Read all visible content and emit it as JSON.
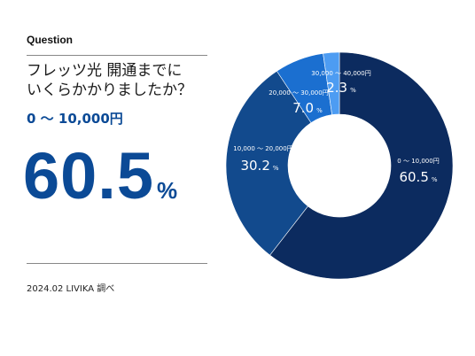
{
  "header": {
    "label": "Question"
  },
  "question": {
    "line1": "フレッツ光 開通までに",
    "line2": "いくらかかりましたか？"
  },
  "highlight": {
    "range": "0 ～ 10,000円",
    "value": "60.5",
    "unit": "%"
  },
  "source": "2024.02 LIVIKA 調べ",
  "colors": {
    "accent": "#0b4a96",
    "slice1": "#0c2b5f",
    "slice2": "#124a8d",
    "slice3": "#1b6fd0",
    "slice4": "#4d9cf2"
  },
  "chart_data": {
    "type": "pie",
    "donut": true,
    "unit": "%",
    "categories": [
      "0 ～ 10,000円",
      "10,000 ～ 20,000円",
      "20,000 ～ 30,000円",
      "30,000 ～ 40,000円"
    ],
    "values": [
      60.5,
      30.2,
      7.0,
      2.3
    ],
    "value_labels": [
      "60.5",
      "30.2",
      "7.0",
      "2.3"
    ]
  }
}
